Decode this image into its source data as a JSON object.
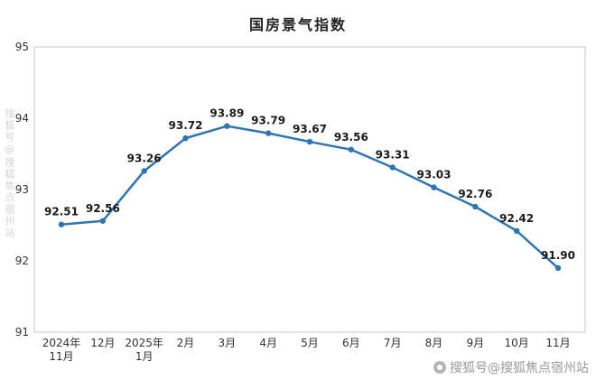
{
  "chart_data": {
    "type": "line",
    "title": "国房景气指数",
    "x_labels": [
      [
        "2024年",
        "11月"
      ],
      [
        "12月"
      ],
      [
        "2025年",
        "1月"
      ],
      [
        "2月"
      ],
      [
        "3月"
      ],
      [
        "4月"
      ],
      [
        "5月"
      ],
      [
        "6月"
      ],
      [
        "7月"
      ],
      [
        "8月"
      ],
      [
        "9月"
      ],
      [
        "10月"
      ],
      [
        "11月"
      ]
    ],
    "values": [
      92.51,
      92.56,
      93.26,
      93.72,
      93.89,
      93.79,
      93.67,
      93.56,
      93.31,
      93.03,
      92.76,
      92.42,
      91.9
    ],
    "yticks": [
      91,
      92,
      93,
      94,
      95
    ],
    "ylim": [
      91,
      95
    ],
    "grid": false,
    "legend": "none",
    "colors": {
      "line": "#2e75b6",
      "marker": "#2e75b6",
      "data_label": "#1a1a1a",
      "axis_border": "#c9c9c9",
      "tick_text": "#333333"
    }
  },
  "watermark": {
    "bottom_right": "搜狐号@搜狐焦点宿州站",
    "left_vertical": "搜狐号@搜狐焦点宿州站"
  }
}
